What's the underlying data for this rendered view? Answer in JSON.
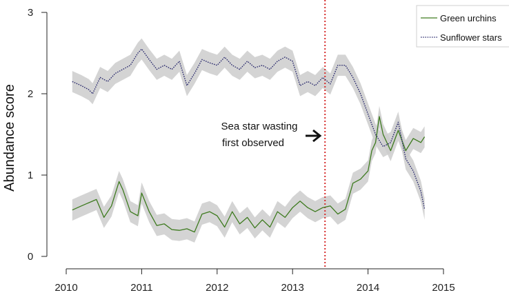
{
  "chart_data": {
    "type": "line",
    "title": "",
    "xlabel": "",
    "ylabel": "Abundance score",
    "xlim": [
      2010,
      2015
    ],
    "ylim": [
      0,
      3
    ],
    "x_ticks": [
      "2010",
      "2011",
      "2012",
      "2013",
      "2014",
      "2015"
    ],
    "y_ticks": [
      "0",
      "1",
      "2",
      "3"
    ],
    "grid": false,
    "legend_position": "top-right",
    "event_line": {
      "x": 2013.43,
      "color": "#d62b2b"
    },
    "annotation": {
      "lines": [
        "Sea star wasting",
        "first observed"
      ]
    },
    "band_color": "#cccccc",
    "series": [
      {
        "name": "Green urchins",
        "color": "#3d7a1e",
        "style": "solid",
        "band_halfwidth": 0.13,
        "x": [
          2010.08,
          2010.2,
          2010.3,
          2010.4,
          2010.5,
          2010.6,
          2010.7,
          2010.75,
          2010.85,
          2010.95,
          2011.0,
          2011.1,
          2011.2,
          2011.3,
          2011.4,
          2011.5,
          2011.6,
          2011.7,
          2011.8,
          2011.9,
          2012.0,
          2012.1,
          2012.2,
          2012.3,
          2012.4,
          2012.5,
          2012.6,
          2012.7,
          2012.8,
          2012.9,
          2013.0,
          2013.1,
          2013.2,
          2013.3,
          2013.4,
          2013.5,
          2013.6,
          2013.7,
          2013.8,
          2013.9,
          2014.0,
          2014.05,
          2014.1,
          2014.15,
          2014.2,
          2014.3,
          2014.4,
          2014.5,
          2014.6,
          2014.7,
          2014.75
        ],
        "y": [
          0.57,
          0.62,
          0.66,
          0.7,
          0.48,
          0.62,
          0.92,
          0.82,
          0.55,
          0.5,
          0.78,
          0.55,
          0.38,
          0.4,
          0.33,
          0.32,
          0.34,
          0.3,
          0.52,
          0.55,
          0.5,
          0.36,
          0.55,
          0.4,
          0.48,
          0.35,
          0.45,
          0.36,
          0.55,
          0.48,
          0.6,
          0.68,
          0.6,
          0.55,
          0.6,
          0.62,
          0.52,
          0.58,
          0.9,
          0.95,
          1.05,
          1.3,
          1.4,
          1.72,
          1.5,
          1.3,
          1.55,
          1.3,
          1.45,
          1.4,
          1.47
        ]
      },
      {
        "name": "Sunflower stars",
        "color": "#2b2b6e",
        "style": "dotted",
        "band_halfwidth": 0.13,
        "x": [
          2010.08,
          2010.2,
          2010.3,
          2010.35,
          2010.45,
          2010.55,
          2010.65,
          2010.75,
          2010.85,
          2010.95,
          2011.0,
          2011.1,
          2011.2,
          2011.3,
          2011.4,
          2011.5,
          2011.6,
          2011.7,
          2011.8,
          2011.9,
          2012.0,
          2012.1,
          2012.2,
          2012.3,
          2012.4,
          2012.5,
          2012.6,
          2012.7,
          2012.8,
          2012.9,
          2013.0,
          2013.1,
          2013.2,
          2013.3,
          2013.4,
          2013.5,
          2013.6,
          2013.7,
          2013.8,
          2013.9,
          2014.0,
          2014.1,
          2014.2,
          2014.3,
          2014.4,
          2014.5,
          2014.6,
          2014.7,
          2014.75
        ],
        "y": [
          2.15,
          2.1,
          2.05,
          2.0,
          2.2,
          2.15,
          2.25,
          2.3,
          2.35,
          2.5,
          2.55,
          2.42,
          2.3,
          2.35,
          2.3,
          2.4,
          2.1,
          2.25,
          2.42,
          2.38,
          2.35,
          2.45,
          2.35,
          2.3,
          2.4,
          2.32,
          2.35,
          2.3,
          2.4,
          2.45,
          2.4,
          2.1,
          2.15,
          2.1,
          2.2,
          2.12,
          2.35,
          2.35,
          2.2,
          2.0,
          1.75,
          1.5,
          1.35,
          1.4,
          1.65,
          1.2,
          1.05,
          0.8,
          0.58
        ]
      }
    ]
  }
}
